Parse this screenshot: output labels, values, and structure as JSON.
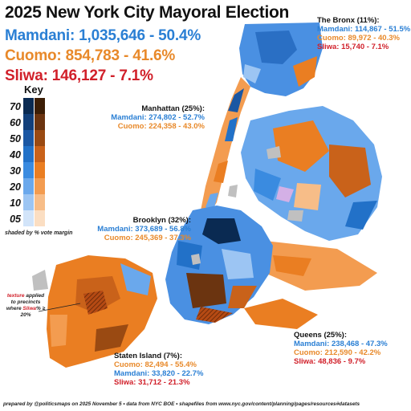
{
  "title": "2025 New York City Mayoral Election",
  "citywide": {
    "mamdani": "Mamdani: 1,035,646 - 50.4%",
    "cuomo": "Cuomo: 854,783 - 41.6%",
    "sliwa": "Sliwa: 146,127 - 7.1%"
  },
  "colors": {
    "mamdani": "#2a7fd4",
    "cuomo": "#e8892a",
    "sliwa": "#d1202a"
  },
  "key": {
    "title": "Key",
    "levels": [
      "70",
      "60",
      "50",
      "40",
      "30",
      "20",
      "10",
      "05"
    ],
    "blue_scale": [
      "#0a2a52",
      "#123f7a",
      "#1b57a3",
      "#2271c8",
      "#3a8be0",
      "#6aa8ec",
      "#9cc5f3",
      "#d2e4f9"
    ],
    "orange_scale": [
      "#3c1e06",
      "#6b3410",
      "#9a4a12",
      "#c9621a",
      "#ea7e22",
      "#f39c50",
      "#f7bd88",
      "#fbdec2"
    ],
    "note": "shaded by % vote margin"
  },
  "boroughs": {
    "bronx": {
      "title": "The Bronx (11%):",
      "mamdani": "Mamdani: 114,867 - 51.5%",
      "cuomo": "Cuomo: 89,972 - 40.3%",
      "sliwa": "Sliwa: 15,740 - 7.1%"
    },
    "manhattan": {
      "title": "Manhattan (25%):",
      "mamdani": "Mamdani: 274,802 - 52.7%",
      "cuomo": "Cuomo: 224,358 - 43.0%"
    },
    "brooklyn": {
      "title": "Brooklyn (32%):",
      "mamdani": "Mamdani: 373,689 - 56.8%",
      "cuomo": "Cuomo: 245,369 - 37.3%"
    },
    "queens": {
      "title": "Queens (25%):",
      "mamdani": "Mamdani: 238,468 - 47.3%",
      "cuomo": "Cuomo: 212,590 - 42.2%",
      "sliwa": "Sliwa: 48,836 - 9.7%"
    },
    "staten_island": {
      "title": "Staten Island (7%):",
      "cuomo": "Cuomo: 82,494 - 55.4%",
      "mamdani": "Mamdani: 33,820 - 22.7%",
      "sliwa": "Sliwa: 31,712 - 21.3%"
    }
  },
  "texture_note": {
    "pre": "texture",
    "mid": " applied to precincts where ",
    "name": "Sliwa",
    "post": "% ≥ 20%"
  },
  "footer": "prepared by @politicsmaps on 2025 November 5  •  data from NYC BOE  •  shapefiles from www.nyc.gov/content/planning/pages/resources#datasets"
}
